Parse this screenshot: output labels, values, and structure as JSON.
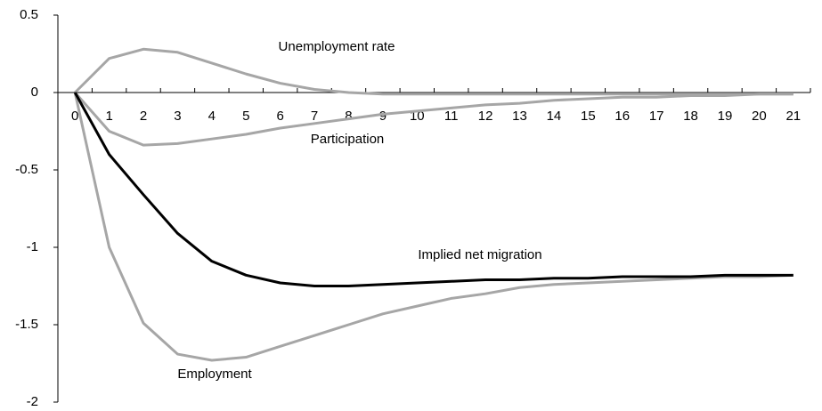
{
  "chart_data": {
    "type": "line",
    "categories": [
      "0",
      "1",
      "2",
      "3",
      "4",
      "5",
      "6",
      "7",
      "8",
      "9",
      "10",
      "11",
      "12",
      "13",
      "14",
      "15",
      "16",
      "17",
      "18",
      "19",
      "20",
      "21"
    ],
    "ylim": [
      -2,
      0.5
    ],
    "yticks": [
      0.5,
      0,
      -0.5,
      -1,
      -1.5,
      -2
    ],
    "series": [
      {
        "name": "Unemployment rate",
        "color": "#a6a6a6",
        "values": [
          0,
          0.22,
          0.28,
          0.26,
          0.19,
          0.12,
          0.06,
          0.02,
          0,
          -0.01,
          -0.01,
          -0.01,
          -0.01,
          -0.01,
          -0.01,
          -0.01,
          -0.01,
          -0.01,
          -0.01,
          -0.01,
          -0.01,
          -0.01
        ]
      },
      {
        "name": "Participation",
        "color": "#a6a6a6",
        "values": [
          0,
          -0.25,
          -0.34,
          -0.33,
          -0.3,
          -0.27,
          -0.23,
          -0.2,
          -0.17,
          -0.14,
          -0.12,
          -0.1,
          -0.08,
          -0.07,
          -0.05,
          -0.04,
          -0.03,
          -0.03,
          -0.02,
          -0.02,
          -0.01,
          -0.01
        ]
      },
      {
        "name": "Employment",
        "color": "#a6a6a6",
        "values": [
          0,
          -1.0,
          -1.49,
          -1.69,
          -1.73,
          -1.71,
          -1.64,
          -1.57,
          -1.5,
          -1.43,
          -1.38,
          -1.33,
          -1.3,
          -1.26,
          -1.24,
          -1.23,
          -1.22,
          -1.21,
          -1.2,
          -1.19,
          -1.19,
          -1.18
        ]
      },
      {
        "name": "Implied net migration",
        "color": "#000000",
        "values": [
          0,
          -0.4,
          -0.66,
          -0.91,
          -1.09,
          -1.18,
          -1.23,
          -1.25,
          -1.25,
          -1.24,
          -1.23,
          -1.22,
          -1.21,
          -1.21,
          -1.2,
          -1.2,
          -1.19,
          -1.19,
          -1.19,
          -1.18,
          -1.18,
          -1.18
        ]
      }
    ]
  }
}
